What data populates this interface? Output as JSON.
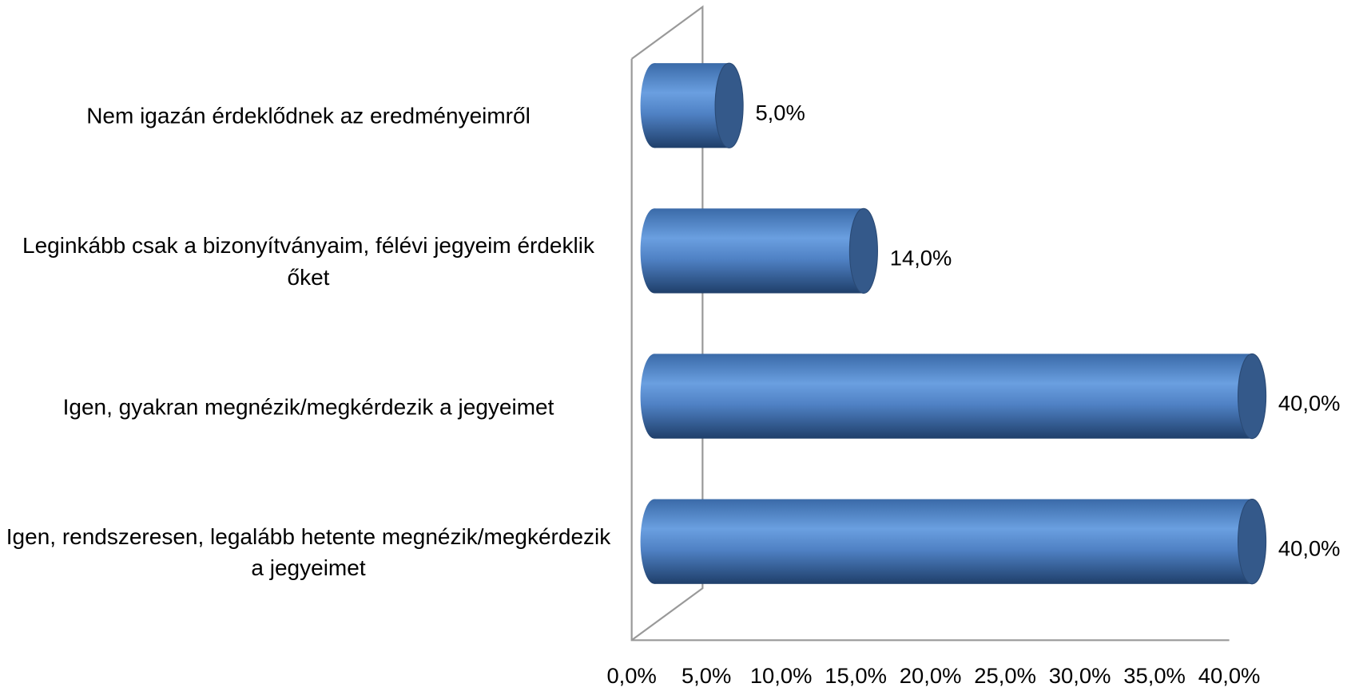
{
  "chart_data": {
    "type": "bar",
    "orientation": "horizontal",
    "categories": [
      "Nem igazán érdeklődnek az eredményeimről",
      "Leginkább csak a bizonyítványaim, félévi jegyeim érdeklik őket",
      "Igen, gyakran megnézik/megkérdezik a jegyeimet",
      "Igen, rendszeresen, legalább hetente megnézik/megkérdezik a jegyeimet"
    ],
    "values": [
      5,
      14,
      40,
      40
    ],
    "value_labels": [
      "5,0%",
      "14,0%",
      "40,0%",
      "40,0%"
    ],
    "color": "#4f81bd",
    "xlim": [
      0,
      40
    ],
    "xticks": [
      {
        "value": 0,
        "label": "0,0%"
      },
      {
        "value": 5,
        "label": "5,0%"
      },
      {
        "value": 10,
        "label": "10,0%"
      },
      {
        "value": 15,
        "label": "15,0%"
      },
      {
        "value": 20,
        "label": "20,0%"
      },
      {
        "value": 25,
        "label": "25,0%"
      },
      {
        "value": 30,
        "label": "30,0%"
      },
      {
        "value": 35,
        "label": "35,0%"
      },
      {
        "value": 40,
        "label": "40,0%"
      }
    ]
  }
}
